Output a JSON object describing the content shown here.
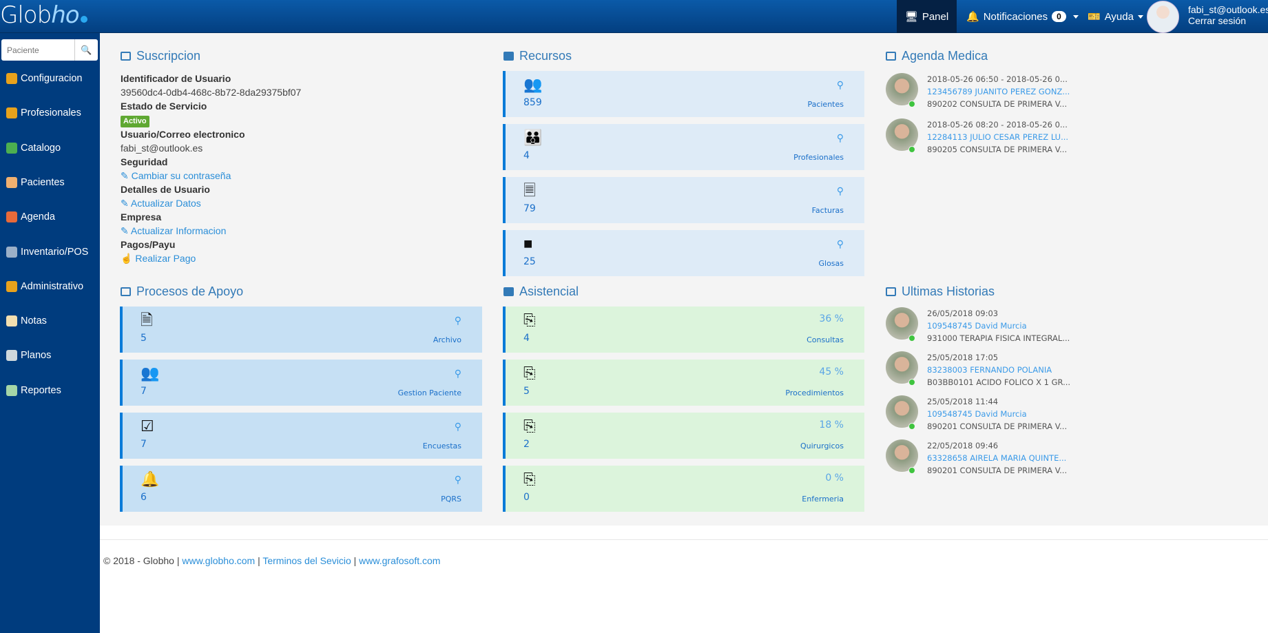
{
  "header": {
    "logo": "Globho",
    "nav": {
      "panel": "Panel",
      "notificaciones": "Notificaciones",
      "notif_count": "0",
      "ayuda": "Ayuda"
    },
    "user_email": "fabi_st@outlook.es",
    "logout": "Cerrar sesión"
  },
  "sidebar": {
    "search_placeholder": "Paciente",
    "items": [
      {
        "label": "Configuracion",
        "icon": "gear-icon",
        "color": "#e8a21c"
      },
      {
        "label": "Profesionales",
        "icon": "users-icon",
        "color": "#e8a21c"
      },
      {
        "label": "Catalogo",
        "icon": "share-nodes-icon",
        "color": "#4caf50"
      },
      {
        "label": "Pacientes",
        "icon": "user-icon",
        "color": "#f0b070"
      },
      {
        "label": "Agenda",
        "icon": "calendar-icon",
        "color": "#e86a3a"
      },
      {
        "label": "Inventario/POS",
        "icon": "cart-icon",
        "color": "#9bb0c8"
      },
      {
        "label": "Administrativo",
        "icon": "briefcase-icon",
        "color": "#e8a21c"
      },
      {
        "label": "Notas",
        "icon": "note-icon",
        "color": "#f3dfb0"
      },
      {
        "label": "Planos",
        "icon": "document-check-icon",
        "color": "#cfd8dc"
      },
      {
        "label": "Reportes",
        "icon": "printer-icon",
        "color": "#a5d6a7"
      }
    ]
  },
  "suscripcion": {
    "title": "Suscripcion",
    "id_label": "Identificador de Usuario",
    "id_value": "39560dc4-0db4-468c-8b72-8da29375bf07",
    "estado_label": "Estado de Servicio",
    "estado_value": "Activo",
    "correo_label": "Usuario/Correo electronico",
    "correo_value": "fabi_st@outlook.es",
    "seguridad_label": "Seguridad",
    "seguridad_link": "Cambiar su contraseña",
    "detalles_label": "Detalles de Usuario",
    "detalles_link": "Actualizar Datos",
    "empresa_label": "Empresa",
    "empresa_link": "Actualizar Informacion",
    "pagos_label": "Pagos/Payu",
    "pagos_link": "Realizar Pago"
  },
  "recursos": {
    "title": "Recursos",
    "cards": [
      {
        "icon": "user-check-icon",
        "glyph": "👥",
        "value": "859",
        "label": "Pacientes"
      },
      {
        "icon": "group-icon",
        "glyph": "👪",
        "value": "4",
        "label": "Profesionales"
      },
      {
        "icon": "invoice-icon",
        "glyph": "🗏",
        "value": "79",
        "label": "Facturas"
      },
      {
        "icon": "sticky-note-icon",
        "glyph": "■",
        "value": "25",
        "label": "Glosas"
      }
    ]
  },
  "procesos": {
    "title": "Procesos de Apoyo",
    "cards": [
      {
        "icon": "pdf-archive-icon",
        "glyph": "🗎",
        "value": "5",
        "label": "Archivo"
      },
      {
        "icon": "users-sync-icon",
        "glyph": "👥",
        "value": "7",
        "label": "Gestion Paciente"
      },
      {
        "icon": "checkbox-icon",
        "glyph": "☑",
        "value": "7",
        "label": "Encuestas"
      },
      {
        "icon": "bell-icon",
        "glyph": "🔔",
        "value": "6",
        "label": "PQRS"
      }
    ]
  },
  "asistencial": {
    "title": "Asistencial",
    "cards": [
      {
        "icon": "copy-icon",
        "glyph": "⎘",
        "value": "4",
        "percent": "36 %",
        "label": "Consultas"
      },
      {
        "icon": "copy-icon",
        "glyph": "⎘",
        "value": "5",
        "percent": "45 %",
        "label": "Procedimientos"
      },
      {
        "icon": "copy-icon",
        "glyph": "⎘",
        "value": "2",
        "percent": "18 %",
        "label": "Quirurgicos"
      },
      {
        "icon": "copy-icon",
        "glyph": "⎘",
        "value": "0",
        "percent": "0 %",
        "label": "Enfermeria"
      }
    ]
  },
  "agenda": {
    "title": "Agenda Medica",
    "items": [
      {
        "time": "2018-05-26 06:50 - 2018-05-26 0...",
        "patient": "123456789 JUANITO PEREZ GONZ...",
        "service": "890202 CONSULTA DE PRIMERA V..."
      },
      {
        "time": "2018-05-26 08:20 - 2018-05-26 0...",
        "patient": "12284113 JULIO CESAR PEREZ LU...",
        "service": "890205 CONSULTA DE PRIMERA V..."
      }
    ]
  },
  "historias": {
    "title": "Ultimas Historias",
    "items": [
      {
        "time": "26/05/2018 09:03",
        "patient": "109548745 David Murcia",
        "service": "931000 TERAPIA FISICA INTEGRAL..."
      },
      {
        "time": "25/05/2018 17:05",
        "patient": "83238003 FERNANDO POLANIA",
        "service": "B03BB0101 ACIDO FOLICO X 1 GR..."
      },
      {
        "time": "25/05/2018 11:44",
        "patient": "109548745 David Murcia",
        "service": "890201 CONSULTA DE PRIMERA V..."
      },
      {
        "time": "22/05/2018 09:46",
        "patient": "63328658 AIRELA MARIA QUINTE...",
        "service": "890201 CONSULTA DE PRIMERA V..."
      }
    ]
  },
  "footer": {
    "copyright": "© 2018 - Globho",
    "sep": "|",
    "link1": "www.globho.com",
    "link2": "Terminos del Sevicio",
    "link3": "www.grafosoft.com"
  }
}
